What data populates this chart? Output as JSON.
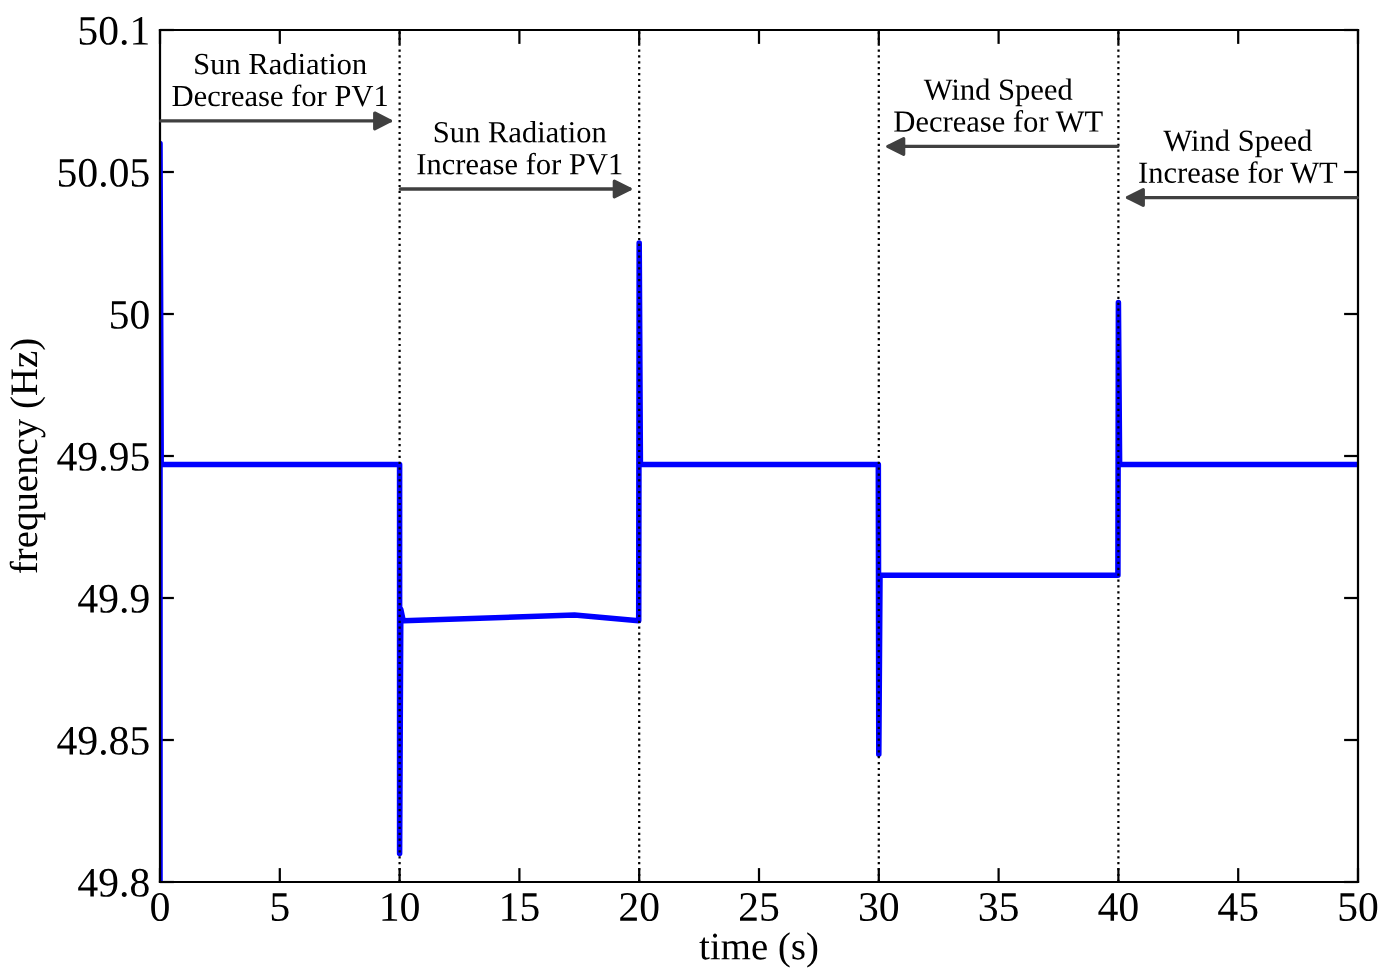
{
  "chart_data": {
    "type": "line",
    "xlabel": "time (s)",
    "ylabel": "frequency (Hz)",
    "x": [
      0,
      0,
      0.05,
      9.98,
      10,
      10,
      10.05,
      10.15,
      17.3,
      19.98,
      20,
      20.05,
      29.98,
      30,
      30.05,
      39.98,
      40,
      40.05,
      50
    ],
    "series": [
      {
        "color": "#0000ff",
        "values": [
          49.8,
          50.06,
          49.947,
          49.947,
          49.947,
          49.81,
          49.896,
          49.892,
          49.894,
          49.892,
          50.025,
          49.947,
          49.947,
          49.845,
          49.908,
          49.908,
          50.004,
          49.947,
          49.947
        ]
      }
    ],
    "xlim": [
      0,
      50
    ],
    "xticks": [
      0,
      5,
      10,
      15,
      20,
      25,
      30,
      35,
      40,
      45,
      50
    ],
    "ylim": [
      49.8,
      50.1
    ],
    "yticks": [
      49.8,
      49.85,
      49.9,
      49.95,
      50,
      50.05,
      50.1
    ],
    "ref_lines": [
      {
        "axis": "x",
        "value": 10,
        "color": "#000000",
        "line_style": "dotted"
      },
      {
        "axis": "x",
        "value": 20,
        "color": "#000000",
        "line_style": "dotted"
      },
      {
        "axis": "x",
        "value": 30,
        "color": "#000000",
        "line_style": "dotted"
      },
      {
        "axis": "x",
        "value": 40,
        "color": "#000000",
        "line_style": "dotted"
      }
    ],
    "annotations": [
      {
        "text": "Sun Radiation\nDecrease for PV1",
        "x": 10,
        "y": 50.068
      },
      {
        "text": "Sun Radiation\nIncrease for PV1",
        "x": 20,
        "y": 50.044
      },
      {
        "text": "Wind Speed\nDecrease for WT",
        "x": 30,
        "y": 50.059
      },
      {
        "text": "Wind Speed\nIncrease for WT",
        "x": 40,
        "y": 50.041
      }
    ],
    "grid": false,
    "legend": false,
    "marker": "none",
    "line_style": "solid"
  }
}
